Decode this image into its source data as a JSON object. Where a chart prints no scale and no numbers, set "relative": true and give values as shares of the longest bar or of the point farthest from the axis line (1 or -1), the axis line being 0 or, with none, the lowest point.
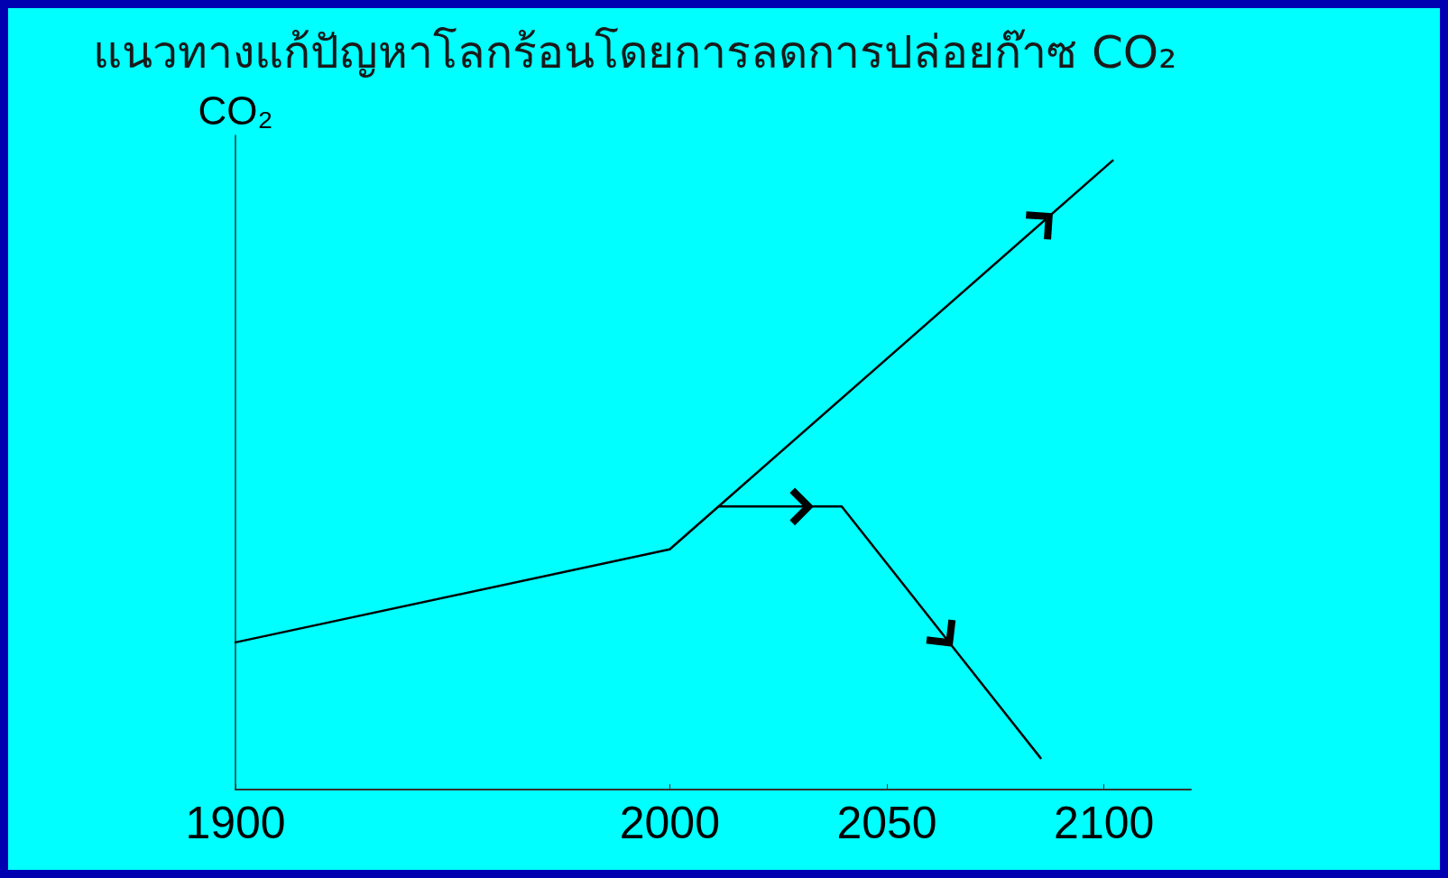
{
  "chart_data": {
    "type": "line",
    "title": "แนวทางแก้ปัญหาโลกร้อนโดยการลดการปล่อยก๊าซ CO₂",
    "ylabel": "CO₂",
    "relative": true,
    "xlim": [
      1900,
      2120
    ],
    "xticks": [
      1900,
      2000,
      2050,
      2100
    ],
    "grid": false,
    "marker": "none",
    "line_style": "solid",
    "series": [
      {
        "color": "#000000",
        "x": [
          1900,
          2000,
          2102
        ],
        "values": [
          0.234,
          0.382,
          1
        ]
      },
      {
        "color": "#000000",
        "x": [
          2011.4,
          2039.6,
          2085.4
        ],
        "values": [
          0.45,
          0.45,
          0.05
        ]
      }
    ]
  }
}
